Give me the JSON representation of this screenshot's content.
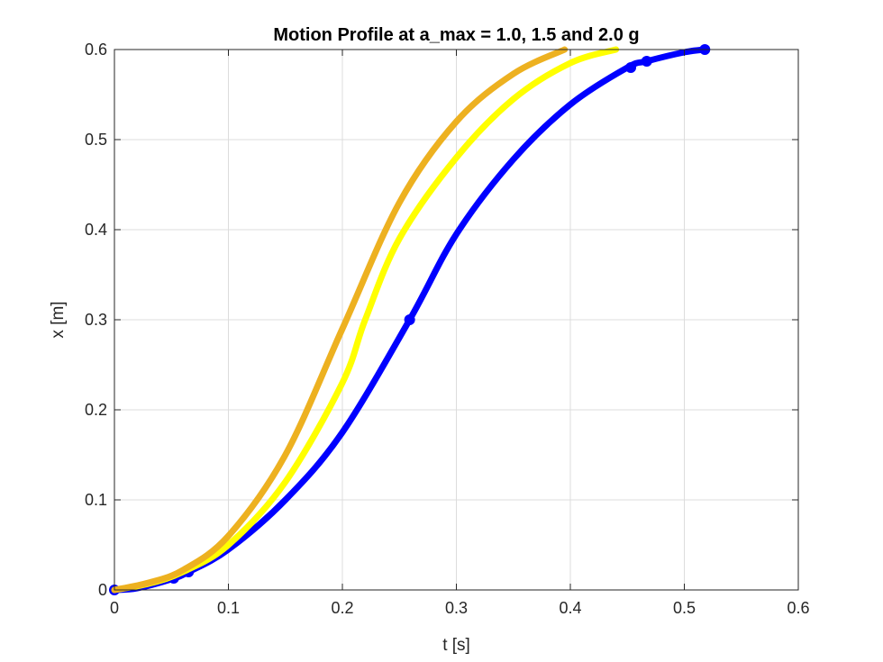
{
  "chart_data": {
    "type": "line",
    "title": "Motion Profile at a_max = 1.0, 1.5 and 2.0 g",
    "xlabel": "t [s]",
    "ylabel": "x [m]",
    "xlim": [
      0,
      0.6
    ],
    "ylim": [
      0,
      0.6
    ],
    "xticks": [
      0,
      0.1,
      0.2,
      0.3,
      0.4,
      0.5,
      0.6
    ],
    "yticks": [
      0,
      0.1,
      0.2,
      0.3,
      0.4,
      0.5,
      0.6
    ],
    "xtick_labels": [
      "0",
      "0.1",
      "0.2",
      "0.3",
      "0.4",
      "0.5",
      "0.6"
    ],
    "ytick_labels": [
      "0",
      "0.1",
      "0.2",
      "0.3",
      "0.4",
      "0.5",
      "0.6"
    ],
    "grid": true,
    "legend": false,
    "series": [
      {
        "color": "#0000ff",
        "x": [
          0,
          0.02,
          0.05,
          0.065,
          0.1,
          0.15,
          0.2,
          0.259,
          0.3,
          0.35,
          0.4,
          0.45,
          0.467,
          0.5,
          0.518
        ],
        "y": [
          0,
          0.002,
          0.012,
          0.02,
          0.045,
          0.1,
          0.175,
          0.3,
          0.395,
          0.478,
          0.539,
          0.58,
          0.587,
          0.597,
          0.6
        ],
        "markers": [
          {
            "x": 0,
            "y": 0
          },
          {
            "x": 0.052,
            "y": 0.013
          },
          {
            "x": 0.065,
            "y": 0.02
          },
          {
            "x": 0.259,
            "y": 0.3
          },
          {
            "x": 0.453,
            "y": 0.58
          },
          {
            "x": 0.467,
            "y": 0.587
          },
          {
            "x": 0.518,
            "y": 0.6
          }
        ]
      },
      {
        "color": "#ffff00",
        "x": [
          0,
          0.03,
          0.06,
          0.1,
          0.15,
          0.2,
          0.22,
          0.25,
          0.3,
          0.35,
          0.4,
          0.44
        ],
        "y": [
          0,
          0.007,
          0.02,
          0.05,
          0.12,
          0.23,
          0.3,
          0.39,
          0.48,
          0.545,
          0.585,
          0.6
        ]
      },
      {
        "color": "#edb120",
        "x": [
          0,
          0.03,
          0.06,
          0.1,
          0.15,
          0.2,
          0.25,
          0.3,
          0.35,
          0.395
        ],
        "y": [
          0,
          0.008,
          0.022,
          0.06,
          0.15,
          0.29,
          0.43,
          0.52,
          0.573,
          0.6
        ]
      }
    ]
  }
}
